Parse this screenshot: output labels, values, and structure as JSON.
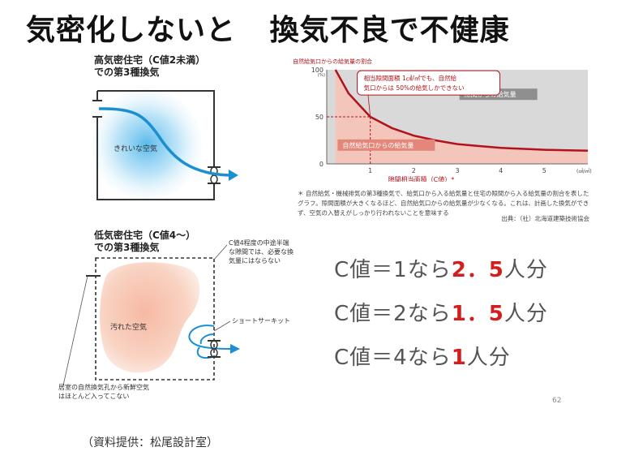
{
  "title": {
    "left": "気密化しないと",
    "right": "換気不良で不健康"
  },
  "high_airtight": {
    "label_line1": "高気密住宅（C値2未満）",
    "label_line2": "での第3種換気",
    "air_label": "きれいな空気"
  },
  "low_airtight": {
    "label_line1": "低気密住宅（C値4〜）",
    "label_line2": "での第3種換気",
    "air_label": "汚れた空気",
    "callout_gap_1": "C値4程度の中途半端",
    "callout_gap_2": "な隙間では、必要な換",
    "callout_gap_3": "気量にはならない",
    "short_circuit": "ショートサーキット",
    "bottom_note_1": "居室の自然換気孔から新鮮空気",
    "bottom_note_2": "はほとんど入ってこない"
  },
  "chart_data": {
    "type": "area",
    "title": "",
    "ylabel": "自然給気口からの給気量の割合",
    "y_unit": "(%)",
    "xlabel": "隙間相当面積（C値）*",
    "x_unit": "(㎠/㎡)",
    "xlim": [
      0,
      6
    ],
    "ylim": [
      0,
      100
    ],
    "x_ticks": [
      "1",
      "2",
      "3",
      "4",
      "5"
    ],
    "y_ticks": [
      "0",
      "50",
      "100"
    ],
    "x": [
      0.2,
      0.5,
      1.0,
      1.5,
      2.0,
      2.5,
      3.0,
      3.5,
      4.0,
      5.0,
      6.0
    ],
    "y": [
      100,
      75,
      50,
      38,
      30,
      25,
      21,
      19,
      17,
      15,
      14
    ],
    "series": [
      {
        "name": "隙間からの給気量",
        "color": "#d9d9d9"
      },
      {
        "name": "自然給気口からの給気量",
        "color": "#f4c6bb"
      }
    ],
    "annotation_line1": "相当隙間面積 1㎠/㎡でも、自然給",
    "annotation_line2": "気口からは 50%の給気しかできない",
    "line_color": "#b2121b"
  },
  "note": {
    "text": "＊ 自然給気・機械排気の第3種換気で、給気口から入る給気量と住宅の隙間から入る給気量の割合を表したグラフ。隙間面積が大きくなるほど、自然給気口からの給気量が少なくなる。これは、計画した換気ができず、空気の入替えがしっかり行われないことを意味する",
    "source": "出典：（社）北海道建築技術協会"
  },
  "c_values": [
    {
      "prefix": "C値＝1なら",
      "emph": "2．5",
      "suffix": "人分"
    },
    {
      "prefix": "C値＝2なら",
      "emph": "1．5",
      "suffix": "人分"
    },
    {
      "prefix": "C値＝4なら",
      "emph": "1",
      "suffix": "人分"
    }
  ],
  "page_number": "62",
  "credit": "（資料提供：松尾設計室）"
}
